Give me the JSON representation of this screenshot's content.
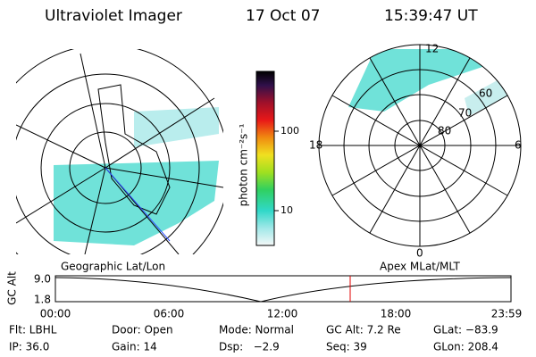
{
  "header": {
    "title": "Ultraviolet Imager",
    "date": "17 Oct 07",
    "time": "15:39:47 UT"
  },
  "colorbar": {
    "label": "photon cm⁻²s⁻¹",
    "ticks": [
      "100",
      "10"
    ]
  },
  "left_map": {
    "label": "Geographic Lat/Lon"
  },
  "right_map": {
    "label": "Apex MLat/MLT",
    "mlt_labels": [
      "12",
      "18",
      "6",
      "0"
    ],
    "lat_labels": [
      "60",
      "70",
      "80"
    ]
  },
  "timeline": {
    "axis_label": "GC Alt",
    "y_labels": [
      "9.0",
      "1.8"
    ],
    "x_labels": [
      "00:00",
      "06:00",
      "12:00",
      "18:00",
      "23:59"
    ]
  },
  "status": {
    "rows": [
      [
        "Flt: LBHL",
        "Door: Open",
        "Mode: Normal",
        "GC Alt: 7.2 Re",
        "GLat: −83.9"
      ],
      [
        "IP: 36.0",
        "Gain: 14",
        "Dsp:   −2.9",
        "Seq: 39",
        "GLon: 208.4"
      ]
    ]
  }
}
